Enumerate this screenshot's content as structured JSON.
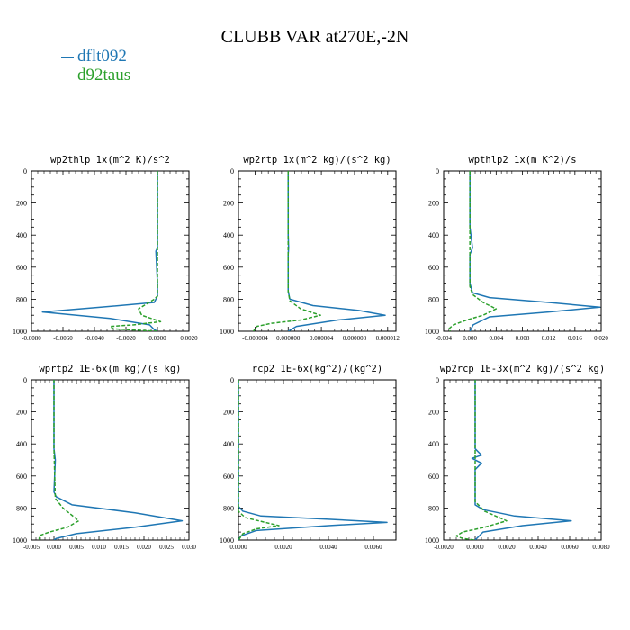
{
  "title": "CLUBB VAR at270E,-2N",
  "legend": [
    {
      "name": "dflt092",
      "color": "#1f77b4"
    },
    {
      "name": "d92taus",
      "color": "#2ca02c"
    }
  ],
  "chart_data": [
    {
      "type": "line",
      "title": "wp2thlp  1x(m^2 K)/s^2",
      "xlim": [
        -0.008,
        0.002
      ],
      "xticks": [
        -0.008,
        -0.006,
        -0.004,
        -0.002,
        0.0,
        0.002
      ],
      "xticklabels": [
        "-0.0080",
        "-0.0060",
        "-0.0040",
        "-0.0020",
        "0.0000",
        "0.0020"
      ],
      "ylim": [
        1000,
        0
      ],
      "yticks": [
        0,
        200,
        400,
        600,
        800,
        1000
      ],
      "series": [
        {
          "name": "dflt092",
          "color": "#1f77b4",
          "dash": "",
          "x": [
            0.0,
            0.0,
            0.0,
            0.0,
            -0.0001,
            0.0,
            0.0,
            -0.0002,
            -0.0036,
            -0.0073,
            -0.003,
            -0.0005,
            -0.0002,
            0.0
          ],
          "y": [
            0,
            300,
            450,
            480,
            500,
            700,
            780,
            820,
            850,
            880,
            920,
            960,
            990,
            1000
          ]
        },
        {
          "name": "d92taus",
          "color": "#2ca02c",
          "dash": "4,2",
          "x": [
            0.0,
            0.0,
            0.0,
            0.0,
            0.0,
            -0.0002,
            -0.0012,
            -0.001,
            0.0002,
            -0.0015,
            -0.003,
            -0.0028,
            0.0
          ],
          "y": [
            0,
            300,
            480,
            700,
            780,
            800,
            860,
            900,
            940,
            960,
            970,
            985,
            1000
          ]
        }
      ]
    },
    {
      "type": "line",
      "title": "wp2rtp  1x(m^2 kg)/(s^2 kg)",
      "xlim": [
        -6e-06,
        1.3e-05
      ],
      "xticks": [
        -4e-06,
        0.0,
        4e-06,
        8e-06,
        1.2e-05
      ],
      "xticklabels": [
        "-0.000004",
        "0.000000",
        "0.000004",
        "0.000008",
        "0.000012"
      ],
      "ylim": [
        1000,
        0
      ],
      "yticks": [
        0,
        200,
        400,
        600,
        800,
        1000
      ],
      "series": [
        {
          "name": "dflt092",
          "color": "#1f77b4",
          "dash": "",
          "x": [
            0.0,
            0.0,
            5e-08,
            0.0,
            0.0,
            2e-07,
            3e-06,
            8.5e-06,
            1.17e-05,
            6e-06,
            1e-06,
            0.0
          ],
          "y": [
            0,
            400,
            480,
            520,
            750,
            800,
            840,
            870,
            900,
            930,
            970,
            1000
          ]
        },
        {
          "name": "d92taus",
          "color": "#2ca02c",
          "dash": "4,2",
          "x": [
            0.0,
            0.0,
            0.0,
            2e-07,
            1.5e-06,
            3.9e-06,
            1.5e-06,
            -2e-06,
            -3.8e-06,
            -4.2e-06
          ],
          "y": [
            0,
            400,
            750,
            810,
            860,
            900,
            930,
            950,
            970,
            1000
          ]
        }
      ]
    },
    {
      "type": "line",
      "title": "wpthlp2  1x(m K^2)/s",
      "xlim": [
        -0.004,
        0.02
      ],
      "xticks": [
        -0.004,
        0.0,
        0.004,
        0.008,
        0.012,
        0.016,
        0.02
      ],
      "xticklabels": [
        "-0.004",
        "0.000",
        "0.004",
        "0.008",
        "0.012",
        "0.016",
        "0.020"
      ],
      "ylim": [
        1000,
        0
      ],
      "yticks": [
        0,
        200,
        400,
        600,
        800,
        1000
      ],
      "series": [
        {
          "name": "dflt092",
          "color": "#1f77b4",
          "dash": "",
          "x": [
            0.0,
            0.0,
            0.0004,
            0.0,
            0.0,
            0.0004,
            0.003,
            0.012,
            0.0198,
            0.012,
            0.003,
            0.0005,
            0.0
          ],
          "y": [
            0,
            350,
            480,
            520,
            700,
            760,
            790,
            820,
            850,
            880,
            910,
            960,
            1000
          ]
        },
        {
          "name": "d92taus",
          "color": "#2ca02c",
          "dash": "4,2",
          "x": [
            0.0,
            0.0,
            0.0,
            0.0004,
            0.002,
            0.004,
            0.002,
            -0.0005,
            -0.0025,
            -0.0032,
            -0.003
          ],
          "y": [
            0,
            400,
            720,
            770,
            820,
            860,
            900,
            930,
            960,
            985,
            1000
          ]
        }
      ]
    },
    {
      "type": "line",
      "title": "wprtp2  1E-6x(m kg)/(s kg)",
      "xlim": [
        -0.005,
        0.03
      ],
      "xticks": [
        -0.005,
        0.0,
        0.005,
        0.01,
        0.015,
        0.02,
        0.025,
        0.03
      ],
      "xticklabels": [
        "-0.005",
        "0.000",
        "0.005",
        "0.010",
        "0.015",
        "0.020",
        "0.025",
        "0.030"
      ],
      "ylim": [
        1000,
        0
      ],
      "yticks": [
        0,
        200,
        400,
        600,
        800,
        1000
      ],
      "series": [
        {
          "name": "dflt092",
          "color": "#1f77b4",
          "dash": "",
          "x": [
            0.0,
            0.0,
            0.0003,
            0.0,
            0.0005,
            0.004,
            0.018,
            0.0285,
            0.018,
            0.005,
            0.0005,
            0.0
          ],
          "y": [
            0,
            430,
            500,
            700,
            730,
            780,
            830,
            880,
            920,
            960,
            990,
            1000
          ]
        },
        {
          "name": "d92taus",
          "color": "#2ca02c",
          "dash": "4,2",
          "x": [
            0.0,
            0.0,
            0.0003,
            0.002,
            0.0055,
            0.003,
            -0.001,
            -0.003,
            -0.0033,
            -0.003
          ],
          "y": [
            0,
            430,
            740,
            800,
            880,
            920,
            950,
            970,
            990,
            1000
          ]
        }
      ]
    },
    {
      "type": "line",
      "title": "rcp2  1E-6x(kg^2)/(kg^2)",
      "xlim": [
        0.0,
        0.007
      ],
      "xticks": [
        0.0,
        0.002,
        0.004,
        0.006
      ],
      "xticklabels": [
        "0.0000",
        "0.0020",
        "0.0040",
        "0.0060"
      ],
      "ylim": [
        1000,
        0
      ],
      "yticks": [
        0,
        200,
        400,
        600,
        800,
        1000
      ],
      "series": [
        {
          "name": "dflt092",
          "color": "#1f77b4",
          "dash": "",
          "x": [
            0.0,
            0.0,
            0.0,
            0.0002,
            0.001,
            0.004,
            0.0066,
            0.004,
            0.0008,
            0.0001,
            0.0
          ],
          "y": [
            0,
            700,
            790,
            820,
            850,
            870,
            890,
            910,
            940,
            975,
            1000
          ]
        },
        {
          "name": "d92taus",
          "color": "#2ca02c",
          "dash": "4,2",
          "x": [
            0.0,
            0.0,
            0.0,
            0.0003,
            0.0012,
            0.0018,
            0.0008,
            0.0002,
            0.0
          ],
          "y": [
            0,
            700,
            820,
            860,
            890,
            910,
            930,
            960,
            1000
          ]
        }
      ]
    },
    {
      "type": "line",
      "title": "wp2rcp  1E-3x(m^2 kg)/(s^2 kg)",
      "xlim": [
        -0.002,
        0.008
      ],
      "xticks": [
        -0.002,
        0.0,
        0.002,
        0.004,
        0.006,
        0.008
      ],
      "xticklabels": [
        "-0.0020",
        "0.0000",
        "0.0020",
        "0.0040",
        "0.0060",
        "0.0080"
      ],
      "ylim": [
        1000,
        0
      ],
      "yticks": [
        0,
        200,
        400,
        600,
        800,
        1000
      ],
      "series": [
        {
          "name": "dflt092",
          "color": "#1f77b4",
          "dash": "",
          "x": [
            0.0,
            0.0,
            0.0004,
            -0.0002,
            0.0004,
            0.0,
            0.0,
            0.0005,
            0.0025,
            0.0061,
            0.003,
            0.0005,
            0.0
          ],
          "y": [
            0,
            430,
            470,
            490,
            520,
            560,
            780,
            810,
            850,
            880,
            910,
            950,
            1000
          ]
        },
        {
          "name": "d92taus",
          "color": "#2ca02c",
          "dash": "4,2",
          "x": [
            0.0,
            0.0,
            0.0,
            0.0006,
            0.002,
            0.0006,
            -0.0008,
            -0.0012,
            -0.0008,
            0.0
          ],
          "y": [
            0,
            430,
            760,
            820,
            880,
            920,
            950,
            975,
            990,
            1000
          ]
        }
      ]
    }
  ]
}
